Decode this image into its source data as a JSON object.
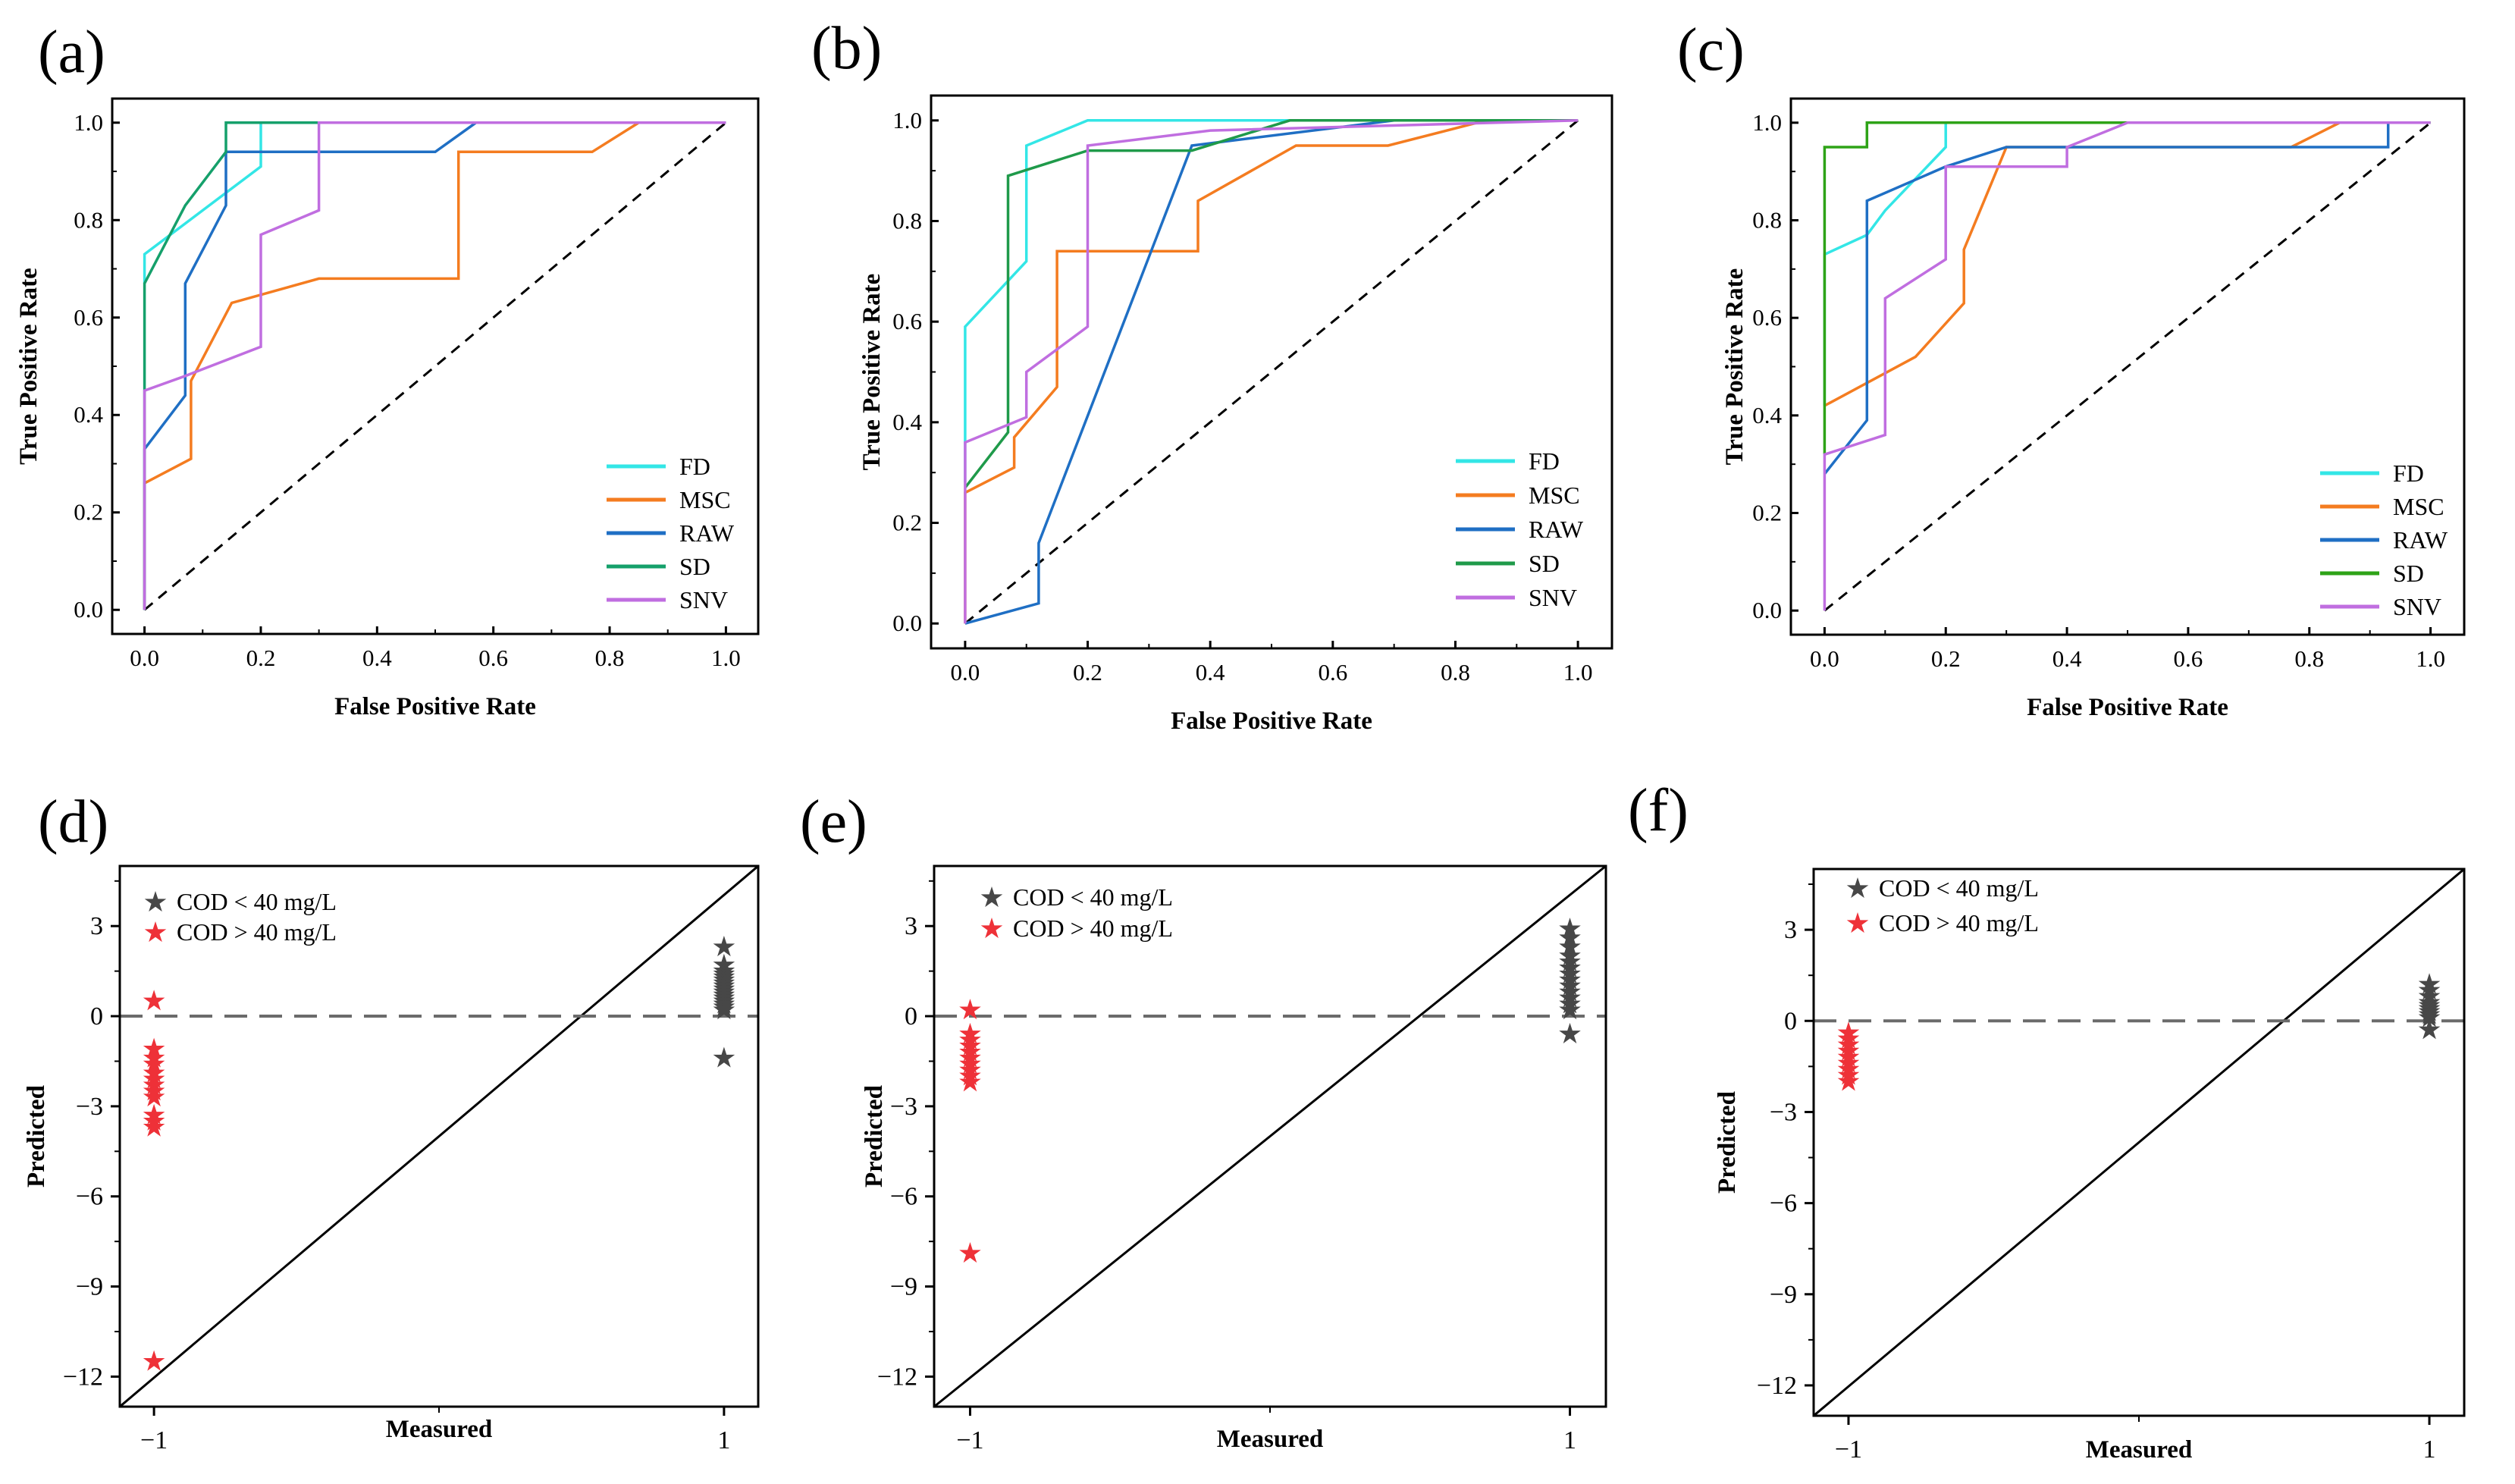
{
  "figure": {
    "colors": {
      "FD": "#33e6e6",
      "MSC": "#f47c20",
      "RAW": "#1f6fc4",
      "SD_a": "#15a06b",
      "SD_b": "#1f9a4a",
      "SD_c": "#2ea317",
      "SNV": "#c06ee0",
      "low": "#474747",
      "high": "#ee3138"
    }
  },
  "chart_data": [
    {
      "panel": "(a)",
      "type": "line",
      "xlabel": "False Positive Rate",
      "ylabel": "True Positive Rate",
      "xlim": [
        0,
        1.0
      ],
      "ylim": [
        0,
        1.0
      ],
      "xticks": [
        "0.0",
        "0.2",
        "0.4",
        "0.6",
        "0.8",
        "1.0"
      ],
      "yticks": [
        "0.0",
        "0.2",
        "0.4",
        "0.6",
        "0.8",
        "1.0"
      ],
      "reference_line": "diagonal dashed",
      "legend": [
        "FD",
        "MSC",
        "RAW",
        "SD",
        "SNV"
      ],
      "series": [
        {
          "name": "FD",
          "color_key": "FD",
          "points": [
            [
              0,
              0.67
            ],
            [
              0,
              0.73
            ],
            [
              0.2,
              0.91
            ],
            [
              0.2,
              1.0
            ],
            [
              1.0,
              1.0
            ]
          ]
        },
        {
          "name": "MSC",
          "color_key": "MSC",
          "points": [
            [
              0,
              0
            ],
            [
              0,
              0.26
            ],
            [
              0.08,
              0.31
            ],
            [
              0.08,
              0.47
            ],
            [
              0.15,
              0.63
            ],
            [
              0.3,
              0.68
            ],
            [
              0.54,
              0.68
            ],
            [
              0.54,
              0.94
            ],
            [
              0.77,
              0.94
            ],
            [
              0.85,
              1.0
            ],
            [
              1.0,
              1.0
            ]
          ]
        },
        {
          "name": "RAW",
          "color_key": "RAW",
          "points": [
            [
              0,
              0
            ],
            [
              0,
              0.33
            ],
            [
              0.07,
              0.44
            ],
            [
              0.07,
              0.67
            ],
            [
              0.14,
              0.83
            ],
            [
              0.14,
              0.94
            ],
            [
              0.5,
              0.94
            ],
            [
              0.57,
              1.0
            ],
            [
              1.0,
              1.0
            ]
          ]
        },
        {
          "name": "SD",
          "color_key": "SD_a",
          "points": [
            [
              0,
              0
            ],
            [
              0,
              0.45
            ],
            [
              0,
              0.67
            ],
            [
              0.07,
              0.83
            ],
            [
              0.14,
              0.94
            ],
            [
              0.14,
              1.0
            ],
            [
              0.3,
              1.0
            ],
            [
              1.0,
              1.0
            ]
          ]
        },
        {
          "name": "SNV",
          "color_key": "SNV",
          "points": [
            [
              0,
              0
            ],
            [
              0,
              0.45
            ],
            [
              0.07,
              0.48
            ],
            [
              0.2,
              0.54
            ],
            [
              0.2,
              0.77
            ],
            [
              0.3,
              0.82
            ],
            [
              0.3,
              1.0
            ],
            [
              1.0,
              1.0
            ]
          ]
        }
      ]
    },
    {
      "panel": "(b)",
      "type": "line",
      "xlabel": "False Positive Rate",
      "ylabel": "True Positive Rate",
      "xlim": [
        0,
        1.0
      ],
      "ylim": [
        0,
        1.0
      ],
      "xticks": [
        "0.0",
        "0.2",
        "0.4",
        "0.6",
        "0.8",
        "1.0"
      ],
      "yticks": [
        "0.0",
        "0.2",
        "0.4",
        "0.6",
        "0.8",
        "1.0"
      ],
      "reference_line": "diagonal dashed",
      "legend": [
        "FD",
        "MSC",
        "RAW",
        "SD",
        "SNV"
      ],
      "series": [
        {
          "name": "FD",
          "color_key": "FD",
          "points": [
            [
              0,
              0.28
            ],
            [
              0,
              0.59
            ],
            [
              0.1,
              0.72
            ],
            [
              0.1,
              0.95
            ],
            [
              0.2,
              1.0
            ],
            [
              1.0,
              1.0
            ]
          ]
        },
        {
          "name": "MSC",
          "color_key": "MSC",
          "points": [
            [
              0,
              0
            ],
            [
              0,
              0.26
            ],
            [
              0.08,
              0.31
            ],
            [
              0.08,
              0.37
            ],
            [
              0.15,
              0.47
            ],
            [
              0.15,
              0.74
            ],
            [
              0.38,
              0.74
            ],
            [
              0.38,
              0.84
            ],
            [
              0.54,
              0.95
            ],
            [
              0.69,
              0.95
            ],
            [
              0.85,
              1.0
            ],
            [
              1.0,
              1.0
            ]
          ]
        },
        {
          "name": "RAW",
          "color_key": "RAW",
          "points": [
            [
              0,
              0
            ],
            [
              0.12,
              0.04
            ],
            [
              0.12,
              0.16
            ],
            [
              0.37,
              0.95
            ],
            [
              0.7,
              1.0
            ],
            [
              1.0,
              1.0
            ]
          ]
        },
        {
          "name": "SD",
          "color_key": "SD_b",
          "points": [
            [
              0,
              0.27
            ],
            [
              0.07,
              0.38
            ],
            [
              0.07,
              0.89
            ],
            [
              0.2,
              0.94
            ],
            [
              0.37,
              0.94
            ],
            [
              0.53,
              1.0
            ],
            [
              1.0,
              1.0
            ]
          ]
        },
        {
          "name": "SNV",
          "color_key": "SNV",
          "points": [
            [
              0,
              0
            ],
            [
              0,
              0.36
            ],
            [
              0.1,
              0.41
            ],
            [
              0.1,
              0.5
            ],
            [
              0.2,
              0.59
            ],
            [
              0.2,
              0.95
            ],
            [
              0.4,
              0.98
            ],
            [
              1.0,
              1.0
            ]
          ]
        }
      ]
    },
    {
      "panel": "(c)",
      "type": "line",
      "xlabel": "False Positive Rate",
      "ylabel": "True Positive Rate",
      "xlim": [
        0,
        1.0
      ],
      "ylim": [
        0,
        1.0
      ],
      "xticks": [
        "0.0",
        "0.2",
        "0.4",
        "0.6",
        "0.8",
        "1.0"
      ],
      "yticks": [
        "0.0",
        "0.2",
        "0.4",
        "0.6",
        "0.8",
        "1.0"
      ],
      "reference_line": "diagonal dashed",
      "legend": [
        "FD",
        "MSC",
        "RAW",
        "SD",
        "SNV"
      ],
      "series": [
        {
          "name": "FD",
          "color_key": "FD",
          "points": [
            [
              0,
              0.42
            ],
            [
              0,
              0.73
            ],
            [
              0.07,
              0.77
            ],
            [
              0.1,
              0.82
            ],
            [
              0.2,
              0.95
            ],
            [
              0.2,
              1.0
            ],
            [
              1.0,
              1.0
            ]
          ]
        },
        {
          "name": "MSC",
          "color_key": "MSC",
          "points": [
            [
              0,
              0.42
            ],
            [
              0.15,
              0.52
            ],
            [
              0.23,
              0.63
            ],
            [
              0.23,
              0.74
            ],
            [
              0.3,
              0.95
            ],
            [
              0.77,
              0.95
            ],
            [
              0.85,
              1.0
            ],
            [
              1.0,
              1.0
            ]
          ]
        },
        {
          "name": "RAW",
          "color_key": "RAW",
          "points": [
            [
              0,
              0.28
            ],
            [
              0.07,
              0.39
            ],
            [
              0.07,
              0.84
            ],
            [
              0.2,
              0.91
            ],
            [
              0.3,
              0.95
            ],
            [
              0.93,
              0.95
            ],
            [
              0.93,
              1.0
            ],
            [
              1.0,
              1.0
            ]
          ]
        },
        {
          "name": "SD",
          "color_key": "SD_c",
          "points": [
            [
              0,
              0.32
            ],
            [
              0,
              0.95
            ],
            [
              0.07,
              0.95
            ],
            [
              0.07,
              1.0
            ],
            [
              0.5,
              1.0
            ],
            [
              1.0,
              1.0
            ]
          ]
        },
        {
          "name": "SNV",
          "color_key": "SNV",
          "points": [
            [
              0,
              0
            ],
            [
              0,
              0.32
            ],
            [
              0.1,
              0.36
            ],
            [
              0.1,
              0.64
            ],
            [
              0.2,
              0.72
            ],
            [
              0.2,
              0.91
            ],
            [
              0.4,
              0.91
            ],
            [
              0.4,
              0.95
            ],
            [
              0.5,
              1.0
            ],
            [
              1.0,
              1.0
            ]
          ]
        }
      ]
    },
    {
      "panel": "(d)",
      "type": "scatter",
      "xlabel": "Measured",
      "ylabel": "Predicted",
      "xlim": [
        -1.12,
        1.12
      ],
      "ylim": [
        -13,
        5
      ],
      "xticks": [
        "−1",
        "1"
      ],
      "yticks": [
        "3",
        "0",
        "−3",
        "−6",
        "−9",
        "−12"
      ],
      "reference_line": "y=x solid; y=0 dashed",
      "legend": [
        "COD < 40 mg/L",
        "COD > 40 mg/L"
      ],
      "series": [
        {
          "name": "COD < 40 mg/L",
          "color_key": "low",
          "x": 1,
          "values": [
            2.3,
            1.7,
            1.5,
            1.4,
            1.3,
            1.2,
            1.1,
            1.0,
            0.9,
            0.8,
            0.7,
            0.6,
            0.5,
            0.4,
            0.3,
            0.2,
            -1.4
          ]
        },
        {
          "name": "COD > 40 mg/L",
          "color_key": "high",
          "x": -1,
          "values": [
            0.5,
            -1.1,
            -1.4,
            -1.6,
            -1.9,
            -2.1,
            -2.3,
            -2.5,
            -2.7,
            -3.3,
            -3.5,
            -3.7,
            -11.5
          ]
        }
      ]
    },
    {
      "panel": "(e)",
      "type": "scatter",
      "xlabel": "Measured",
      "ylabel": "Predicted",
      "xlim": [
        -1.12,
        1.12
      ],
      "ylim": [
        -13,
        5
      ],
      "xticks": [
        "−1",
        "1"
      ],
      "yticks": [
        "3",
        "0",
        "−3",
        "−6",
        "−9",
        "−12"
      ],
      "reference_line": "y=x solid; y=0 dashed",
      "legend": [
        "COD < 40 mg/L",
        "COD > 40 mg/L"
      ],
      "series": [
        {
          "name": "COD < 40 mg/L",
          "color_key": "low",
          "x": 1,
          "values": [
            2.9,
            2.6,
            2.3,
            2.0,
            1.8,
            1.6,
            1.4,
            1.2,
            1.0,
            0.8,
            0.6,
            0.4,
            0.2,
            -0.6
          ]
        },
        {
          "name": "COD > 40 mg/L",
          "color_key": "high",
          "x": -1,
          "values": [
            0.2,
            -0.6,
            -0.8,
            -1.0,
            -1.2,
            -1.4,
            -1.6,
            -1.8,
            -2.0,
            -2.2,
            -7.9
          ]
        }
      ]
    },
    {
      "panel": "(f)",
      "type": "scatter",
      "xlabel": "Measured",
      "ylabel": "Predicted",
      "xlim": [
        -1.12,
        1.12
      ],
      "ylim": [
        -13,
        5
      ],
      "xticks": [
        "−1",
        "1"
      ],
      "yticks": [
        "3",
        "0",
        "−3",
        "−6",
        "−9",
        "−12"
      ],
      "reference_line": "y=x solid; y=0 dashed",
      "legend": [
        "COD < 40 mg/L",
        "COD > 40 mg/L"
      ],
      "series": [
        {
          "name": "COD < 40 mg/L",
          "color_key": "low",
          "x": 1,
          "values": [
            1.2,
            1.0,
            0.8,
            0.6,
            0.5,
            0.4,
            0.3,
            0.2,
            0.1,
            -0.3
          ]
        },
        {
          "name": "COD > 40 mg/L",
          "color_key": "high",
          "x": -1,
          "values": [
            -0.4,
            -0.6,
            -0.8,
            -1.0,
            -1.2,
            -1.4,
            -1.6,
            -1.8,
            -2.0
          ]
        }
      ]
    }
  ]
}
